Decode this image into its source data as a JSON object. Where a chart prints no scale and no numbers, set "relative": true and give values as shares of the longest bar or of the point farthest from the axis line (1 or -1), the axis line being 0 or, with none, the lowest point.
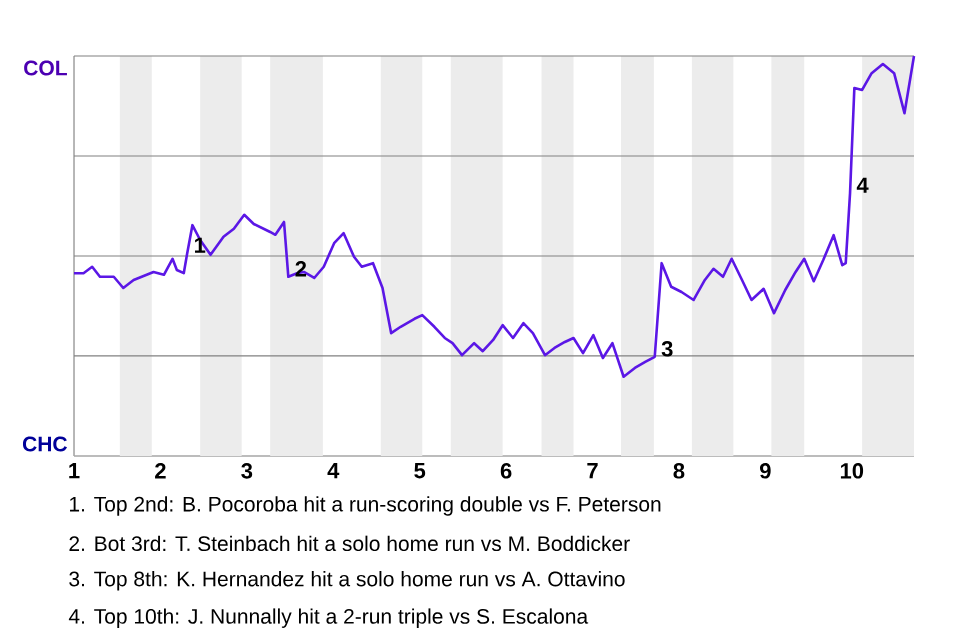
{
  "chart_data": {
    "type": "line",
    "xlim": [
      1,
      10.72
    ],
    "xticks": [
      1,
      2,
      3,
      4,
      5,
      6,
      7,
      8,
      9,
      10
    ],
    "relative": true,
    "grid": "y",
    "marker": "none",
    "line_style": "solid",
    "series": [
      {
        "color": "#5b17e6",
        "x": [
          1.0,
          1.11,
          1.21,
          1.3,
          1.46,
          1.57,
          1.69,
          1.92,
          2.04,
          2.14,
          2.19,
          2.27,
          2.31,
          2.37,
          2.46,
          2.58,
          2.73,
          2.85,
          2.97,
          3.08,
          3.27,
          3.33,
          3.43,
          3.48,
          3.58,
          3.66,
          3.78,
          3.89,
          4.01,
          4.12,
          4.24,
          4.33,
          4.46,
          4.57,
          4.67,
          4.78,
          4.94,
          5.03,
          5.17,
          5.29,
          5.38,
          5.49,
          5.63,
          5.73,
          5.85,
          5.96,
          6.08,
          6.2,
          6.31,
          6.45,
          6.56,
          6.68,
          6.78,
          6.89,
          7.01,
          7.12,
          7.23,
          7.36,
          7.49,
          7.61,
          7.72,
          7.8,
          7.91,
          8.03,
          8.17,
          8.3,
          8.4,
          8.51,
          8.61,
          8.73,
          8.84,
          8.98,
          9.1,
          9.23,
          9.35,
          9.45,
          9.56,
          9.67,
          9.79,
          9.89,
          9.93,
          9.98,
          10.03,
          10.12,
          10.23,
          10.36,
          10.49,
          10.61,
          10.72
        ],
        "values": [
          0.457,
          0.457,
          0.473,
          0.448,
          0.448,
          0.42,
          0.44,
          0.46,
          0.453,
          0.493,
          0.465,
          0.457,
          0.507,
          0.577,
          0.54,
          0.503,
          0.548,
          0.568,
          0.603,
          0.58,
          0.56,
          0.553,
          0.585,
          0.448,
          0.457,
          0.46,
          0.445,
          0.473,
          0.532,
          0.557,
          0.498,
          0.473,
          0.482,
          0.42,
          0.307,
          0.323,
          0.343,
          0.352,
          0.323,
          0.295,
          0.282,
          0.252,
          0.282,
          0.262,
          0.29,
          0.327,
          0.295,
          0.332,
          0.307,
          0.252,
          0.27,
          0.285,
          0.295,
          0.257,
          0.302,
          0.245,
          0.282,
          0.198,
          0.22,
          0.235,
          0.248,
          0.482,
          0.423,
          0.41,
          0.39,
          0.44,
          0.468,
          0.448,
          0.493,
          0.44,
          0.39,
          0.418,
          0.357,
          0.415,
          0.46,
          0.493,
          0.437,
          0.49,
          0.552,
          0.477,
          0.482,
          0.657,
          0.92,
          0.915,
          0.957,
          0.98,
          0.957,
          0.857,
          1.0
        ]
      }
    ],
    "bands": [
      {
        "axis": "x",
        "from": 1.53,
        "to": 1.9,
        "color": "#ececec"
      },
      {
        "axis": "x",
        "from": 2.46,
        "to": 2.94,
        "color": "#ececec"
      },
      {
        "axis": "x",
        "from": 3.27,
        "to": 3.88,
        "color": "#ececec"
      },
      {
        "axis": "x",
        "from": 4.55,
        "to": 5.03,
        "color": "#ececec"
      },
      {
        "axis": "x",
        "from": 5.36,
        "to": 5.96,
        "color": "#ececec"
      },
      {
        "axis": "x",
        "from": 6.41,
        "to": 6.78,
        "color": "#ececec"
      },
      {
        "axis": "x",
        "from": 7.33,
        "to": 7.71,
        "color": "#ececec"
      },
      {
        "axis": "x",
        "from": 8.15,
        "to": 8.63,
        "color": "#ececec"
      },
      {
        "axis": "x",
        "from": 9.07,
        "to": 9.45,
        "color": "#ececec"
      },
      {
        "axis": "x",
        "from": 10.12,
        "to": 10.72,
        "color": "#ececec"
      }
    ],
    "annotations": [
      "COL",
      "CHC",
      {
        "text": "1",
        "x": 2.31,
        "y": 0.507
      },
      {
        "text": "2",
        "x": 3.48,
        "y": 0.448
      },
      {
        "text": "3",
        "x": 7.72,
        "y": 0.248
      },
      {
        "text": "4",
        "x": 9.98,
        "y": 0.657
      },
      "1. Top 2nd: B. Pocoroba hit a run-scoring double vs F. Peterson",
      "2. Bot 3rd: T. Steinbach hit a solo home run vs M. Boddicker",
      "3. Top 8th: K. Hernandez hit a solo home run vs A. Ottavino",
      "4. Top 10th: J. Nunnally hit a 2-run triple vs S. Escalona"
    ]
  }
}
